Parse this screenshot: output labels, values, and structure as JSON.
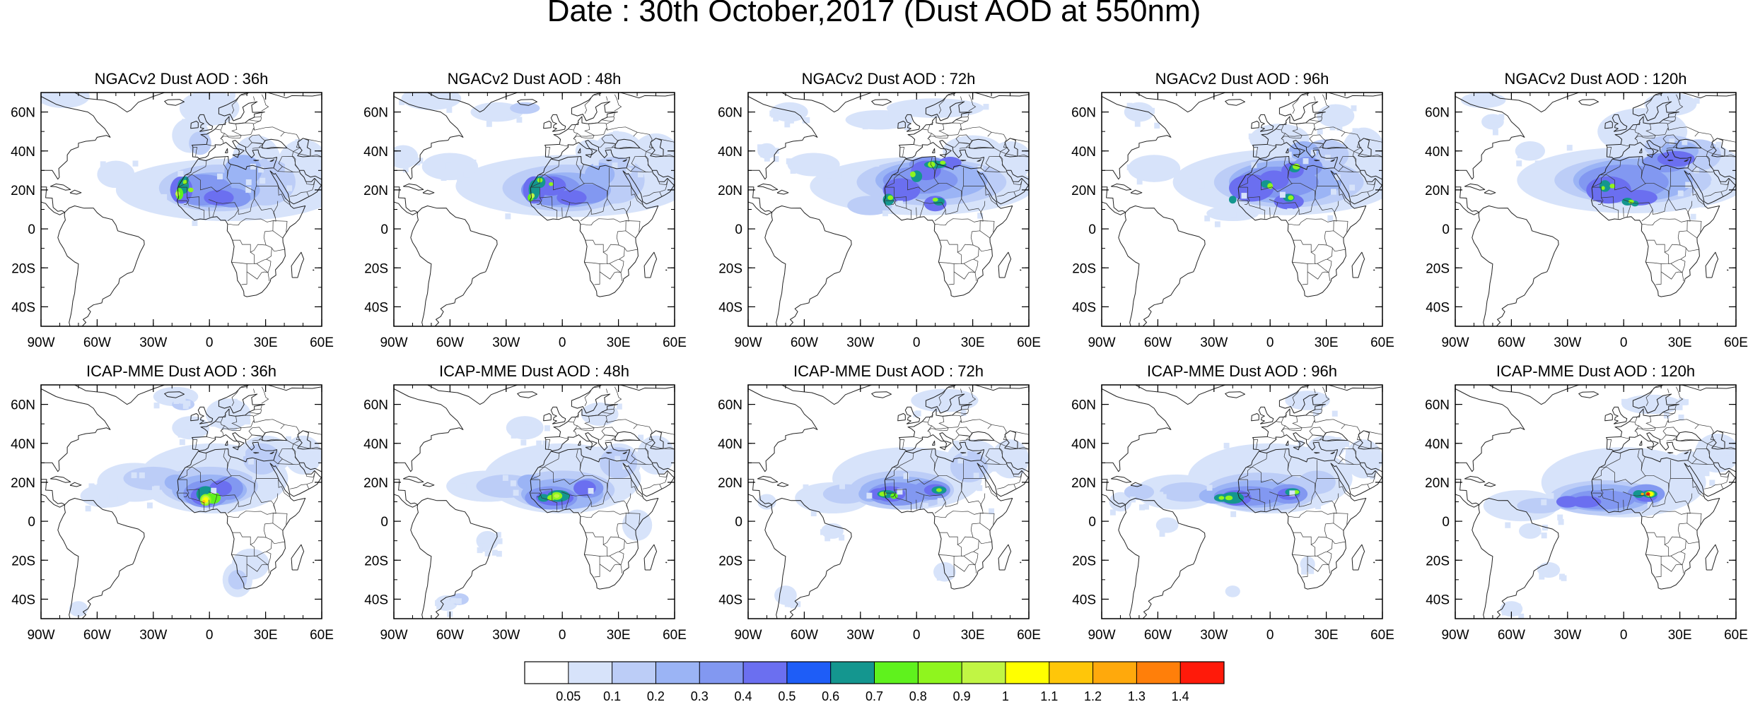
{
  "title": "Date : 30th October,2017 (Dust AOD at 550nm)",
  "panels": [
    {
      "model": "NGACv2",
      "lead_hours": 36,
      "title": "NGACv2 Dust AOD : 36h"
    },
    {
      "model": "NGACv2",
      "lead_hours": 48,
      "title": "NGACv2 Dust AOD : 48h"
    },
    {
      "model": "NGACv2",
      "lead_hours": 72,
      "title": "NGACv2 Dust AOD : 72h"
    },
    {
      "model": "NGACv2",
      "lead_hours": 96,
      "title": "NGACv2 Dust AOD : 96h"
    },
    {
      "model": "NGACv2",
      "lead_hours": 120,
      "title": "NGACv2 Dust AOD : 120h"
    },
    {
      "model": "ICAP-MME",
      "lead_hours": 36,
      "title": "ICAP-MME Dust AOD : 36h"
    },
    {
      "model": "ICAP-MME",
      "lead_hours": 48,
      "title": "ICAP-MME Dust AOD : 48h"
    },
    {
      "model": "ICAP-MME",
      "lead_hours": 72,
      "title": "ICAP-MME Dust AOD : 72h"
    },
    {
      "model": "ICAP-MME",
      "lead_hours": 96,
      "title": "ICAP-MME Dust AOD : 96h"
    },
    {
      "model": "ICAP-MME",
      "lead_hours": 120,
      "title": "ICAP-MME Dust AOD : 120h"
    }
  ],
  "axes": {
    "lon_range": [
      -90,
      60
    ],
    "lat_range": [
      -50,
      70
    ],
    "lon_ticks": [
      {
        "value": -90,
        "label": "90W"
      },
      {
        "value": -60,
        "label": "60W"
      },
      {
        "value": -30,
        "label": "30W"
      },
      {
        "value": 0,
        "label": "0"
      },
      {
        "value": 30,
        "label": "30E"
      },
      {
        "value": 60,
        "label": "60E"
      }
    ],
    "lat_ticks": [
      {
        "value": 60,
        "label": "60N"
      },
      {
        "value": 40,
        "label": "40N"
      },
      {
        "value": 20,
        "label": "20N"
      },
      {
        "value": 0,
        "label": "0"
      },
      {
        "value": -20,
        "label": "20S"
      },
      {
        "value": -40,
        "label": "40S"
      }
    ]
  },
  "colorbar": {
    "labels": [
      "0.05",
      "0.1",
      "0.2",
      "0.3",
      "0.4",
      "0.5",
      "0.6",
      "0.7",
      "0.8",
      "0.9",
      "1",
      "1.1",
      "1.2",
      "1.3",
      "1.4"
    ],
    "colors": [
      "#ffffff",
      "#d7e3fa",
      "#bccdf7",
      "#9bb4f5",
      "#8298f1",
      "#6b6ff0",
      "#1e5df7",
      "#14968f",
      "#5ff21d",
      "#8ff51e",
      "#c1f544",
      "#ffff00",
      "#ffc609",
      "#ffa90c",
      "#ff7f0a",
      "#ff1a0a"
    ]
  }
}
